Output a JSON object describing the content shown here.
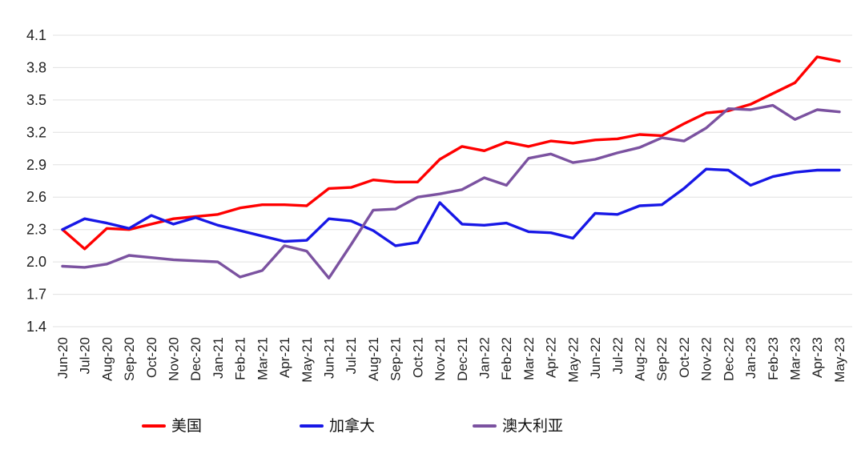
{
  "chart_data": {
    "type": "line",
    "title": "",
    "xlabel": "",
    "ylabel": "",
    "categories": [
      "Jun-20",
      "Jul-20",
      "Aug-20",
      "Sep-20",
      "Oct-20",
      "Nov-20",
      "Dec-20",
      "Jan-21",
      "Feb-21",
      "Mar-21",
      "Apr-21",
      "May-21",
      "Jun-21",
      "Jul-21",
      "Aug-21",
      "Sep-21",
      "Oct-21",
      "Nov-21",
      "Dec-21",
      "Jan-22",
      "Feb-22",
      "Mar-22",
      "Apr-22",
      "May-22",
      "Jun-22",
      "Jul-22",
      "Aug-22",
      "Sep-22",
      "Oct-22",
      "Nov-22",
      "Dec-22",
      "Jan-23",
      "Feb-23",
      "Mar-23",
      "Apr-23",
      "May-23"
    ],
    "series": [
      {
        "name": "美国",
        "color": "#FF0000",
        "values": [
          2.3,
          2.12,
          2.31,
          2.3,
          2.35,
          2.4,
          2.42,
          2.44,
          2.5,
          2.53,
          2.53,
          2.52,
          2.68,
          2.69,
          2.76,
          2.74,
          2.74,
          2.95,
          3.07,
          3.03,
          3.11,
          3.07,
          3.12,
          3.1,
          3.13,
          3.14,
          3.18,
          3.17,
          3.28,
          3.38,
          3.4,
          3.46,
          3.56,
          3.66,
          3.9,
          3.86
        ]
      },
      {
        "name": "加拿大",
        "color": "#1717E6",
        "values": [
          2.3,
          2.4,
          2.36,
          2.31,
          2.43,
          2.35,
          2.41,
          2.34,
          2.29,
          2.24,
          2.19,
          2.2,
          2.4,
          2.38,
          2.29,
          2.15,
          2.18,
          2.55,
          2.35,
          2.34,
          2.36,
          2.28,
          2.27,
          2.22,
          2.45,
          2.44,
          2.52,
          2.53,
          2.68,
          2.86,
          2.85,
          2.71,
          2.79,
          2.83,
          2.85,
          2.85
        ]
      },
      {
        "name": "澳大利亚",
        "color": "#7B52A0",
        "values": [
          1.96,
          1.95,
          1.98,
          2.06,
          2.04,
          2.02,
          2.01,
          2.0,
          1.86,
          1.92,
          2.15,
          2.1,
          1.85,
          2.16,
          2.48,
          2.49,
          2.6,
          2.63,
          2.67,
          2.78,
          2.71,
          2.96,
          3.0,
          2.92,
          2.95,
          3.01,
          3.06,
          3.15,
          3.12,
          3.24,
          3.42,
          3.41,
          3.45,
          3.32,
          3.41,
          3.39
        ]
      }
    ],
    "y_ticks": [
      4.1,
      3.8,
      3.5,
      3.2,
      2.9,
      2.6,
      2.3,
      2.0,
      1.7,
      1.4
    ],
    "ylim": [
      1.4,
      4.1
    ],
    "grid": "horizontal",
    "gridline_color": "#E0E0E0",
    "legend_position": "bottom"
  }
}
